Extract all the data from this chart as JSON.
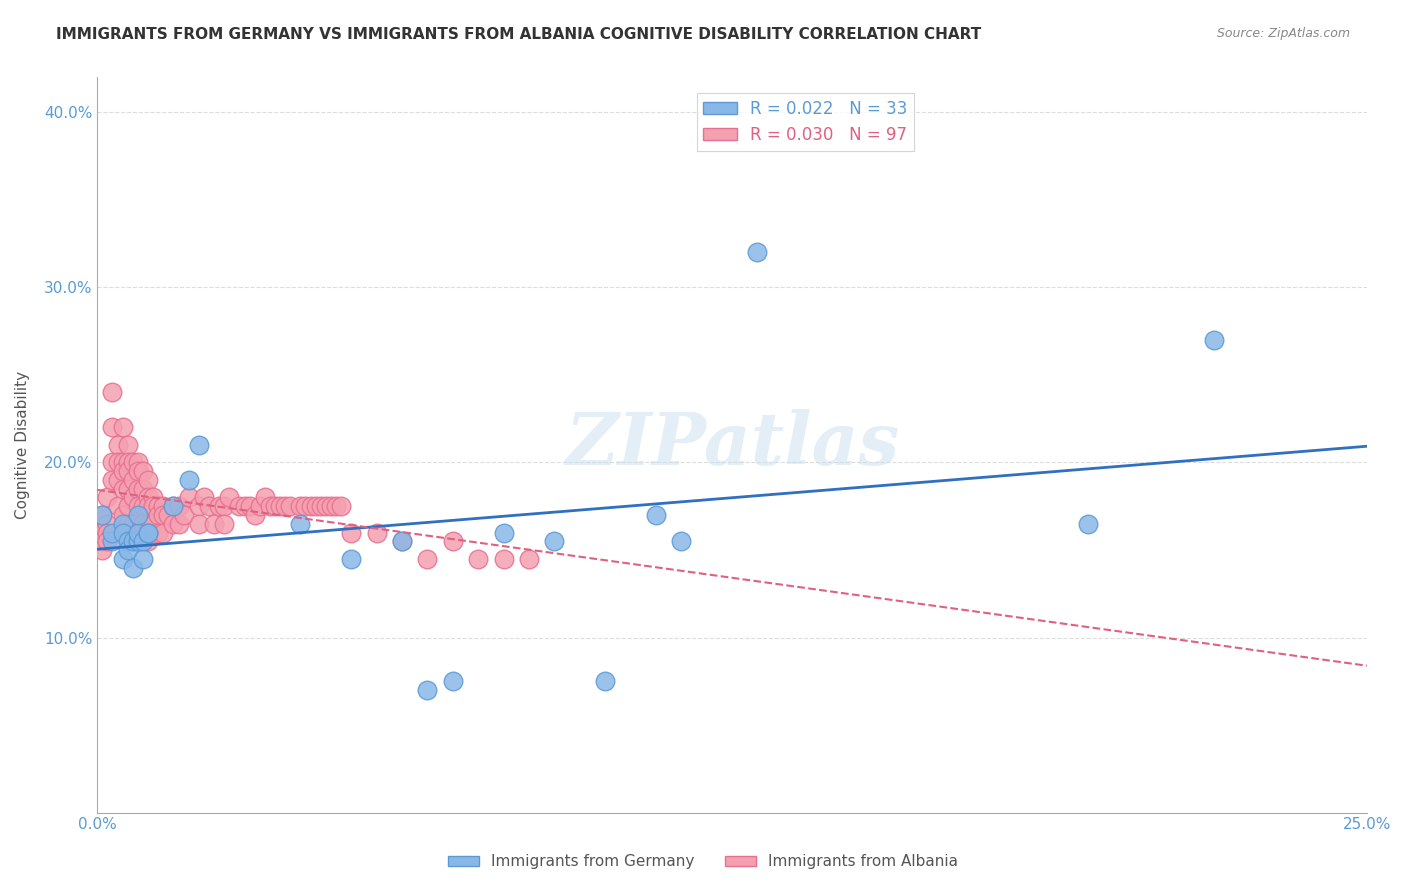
{
  "title": "IMMIGRANTS FROM GERMANY VS IMMIGRANTS FROM ALBANIA COGNITIVE DISABILITY CORRELATION CHART",
  "source": "Source: ZipAtlas.com",
  "xlabel": "",
  "ylabel": "Cognitive Disability",
  "xlim": [
    0.0,
    0.25
  ],
  "ylim": [
    0.0,
    0.42
  ],
  "xticks": [
    0.0,
    0.05,
    0.1,
    0.15,
    0.2,
    0.25
  ],
  "yticks": [
    0.0,
    0.1,
    0.2,
    0.3,
    0.4
  ],
  "ytick_labels": [
    "",
    "10.0%",
    "20.0%",
    "30.0%",
    "40.0%"
  ],
  "xtick_labels": [
    "0.0%",
    "",
    "",
    "",
    "",
    "25.0%"
  ],
  "legend_entries": [
    {
      "label": "R = 0.022   N = 33",
      "color": "#89b8e8"
    },
    {
      "label": "R = 0.030   N = 97",
      "color": "#f4a0b0"
    }
  ],
  "germany_color": "#89b8e8",
  "albania_color": "#f4a0b0",
  "germany_edge_color": "#5b9bd5",
  "albania_edge_color": "#e87090",
  "germany_line_color": "#3070c0",
  "albania_line_color": "#e06080",
  "background_color": "#ffffff",
  "grid_color": "#dddddd",
  "watermark": "ZIPatlas",
  "germany_x": [
    0.001,
    0.003,
    0.003,
    0.005,
    0.005,
    0.005,
    0.006,
    0.006,
    0.007,
    0.007,
    0.008,
    0.008,
    0.008,
    0.009,
    0.009,
    0.01,
    0.01,
    0.015,
    0.018,
    0.02,
    0.04,
    0.05,
    0.06,
    0.065,
    0.07,
    0.08,
    0.09,
    0.1,
    0.11,
    0.115,
    0.13,
    0.195,
    0.22
  ],
  "germany_y": [
    0.17,
    0.155,
    0.16,
    0.165,
    0.145,
    0.16,
    0.155,
    0.15,
    0.155,
    0.14,
    0.155,
    0.16,
    0.17,
    0.145,
    0.155,
    0.16,
    0.16,
    0.175,
    0.19,
    0.21,
    0.165,
    0.145,
    0.155,
    0.07,
    0.075,
    0.16,
    0.155,
    0.075,
    0.17,
    0.155,
    0.32,
    0.165,
    0.27
  ],
  "albania_x": [
    0.001,
    0.001,
    0.001,
    0.001,
    0.002,
    0.002,
    0.002,
    0.002,
    0.003,
    0.003,
    0.003,
    0.003,
    0.004,
    0.004,
    0.004,
    0.004,
    0.005,
    0.005,
    0.005,
    0.005,
    0.005,
    0.006,
    0.006,
    0.006,
    0.006,
    0.006,
    0.006,
    0.007,
    0.007,
    0.007,
    0.007,
    0.008,
    0.008,
    0.008,
    0.008,
    0.009,
    0.009,
    0.009,
    0.009,
    0.01,
    0.01,
    0.01,
    0.01,
    0.01,
    0.011,
    0.011,
    0.011,
    0.012,
    0.012,
    0.012,
    0.013,
    0.013,
    0.013,
    0.014,
    0.015,
    0.015,
    0.016,
    0.016,
    0.017,
    0.018,
    0.02,
    0.02,
    0.021,
    0.022,
    0.023,
    0.024,
    0.025,
    0.025,
    0.026,
    0.028,
    0.029,
    0.03,
    0.031,
    0.032,
    0.033,
    0.034,
    0.035,
    0.036,
    0.037,
    0.038,
    0.04,
    0.041,
    0.042,
    0.043,
    0.044,
    0.045,
    0.046,
    0.047,
    0.048,
    0.05,
    0.055,
    0.06,
    0.065,
    0.07,
    0.075,
    0.08,
    0.085
  ],
  "albania_y": [
    0.17,
    0.16,
    0.155,
    0.15,
    0.18,
    0.165,
    0.16,
    0.155,
    0.24,
    0.22,
    0.2,
    0.19,
    0.21,
    0.2,
    0.19,
    0.175,
    0.22,
    0.2,
    0.195,
    0.185,
    0.17,
    0.21,
    0.2,
    0.195,
    0.185,
    0.175,
    0.165,
    0.2,
    0.19,
    0.18,
    0.165,
    0.2,
    0.195,
    0.185,
    0.175,
    0.195,
    0.185,
    0.175,
    0.165,
    0.19,
    0.18,
    0.175,
    0.165,
    0.155,
    0.18,
    0.175,
    0.165,
    0.175,
    0.17,
    0.16,
    0.175,
    0.17,
    0.16,
    0.17,
    0.175,
    0.165,
    0.175,
    0.165,
    0.17,
    0.18,
    0.175,
    0.165,
    0.18,
    0.175,
    0.165,
    0.175,
    0.175,
    0.165,
    0.18,
    0.175,
    0.175,
    0.175,
    0.17,
    0.175,
    0.18,
    0.175,
    0.175,
    0.175,
    0.175,
    0.175,
    0.175,
    0.175,
    0.175,
    0.175,
    0.175,
    0.175,
    0.175,
    0.175,
    0.175,
    0.16,
    0.16,
    0.155,
    0.145,
    0.155,
    0.145,
    0.145,
    0.145
  ]
}
